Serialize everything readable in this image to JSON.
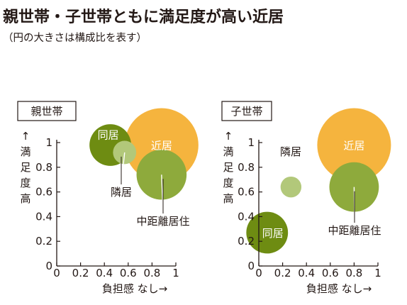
{
  "title": "親世帯・子世帯ともに満足度が高い近居",
  "subtitle": "（円の大きさは構成比を表す）",
  "colors": {
    "orange": "#f5b43e",
    "dark_green": "#6e8c12",
    "mid_green": "#8eaa3c",
    "light_green": "#b2c87a",
    "axis": "#231815"
  },
  "chart_data": [
    {
      "type": "scatter",
      "panel_label": "親世帯",
      "xlabel": "負担感 なし→",
      "ylabel_arrow": "↑",
      "ylabel": [
        "満",
        "足",
        "度",
        "高"
      ],
      "xlim": [
        0,
        1
      ],
      "ylim": [
        0,
        1
      ],
      "x_ticks": [
        "0",
        "0.2",
        "0.4",
        "0.6",
        "0.8",
        "1"
      ],
      "y_ticks": [
        "0",
        "0.2",
        "0.4",
        "0.6",
        "0.8",
        "1"
      ],
      "bubbles": [
        {
          "name": "近居",
          "x": 0.88,
          "y": 0.98,
          "size": 1.0,
          "color": "orange",
          "label": "近居"
        },
        {
          "name": "同居",
          "x": 0.45,
          "y": 0.98,
          "size": 0.32,
          "color": "dark_green",
          "label": "同居"
        },
        {
          "name": "隣居",
          "x": 0.57,
          "y": 0.92,
          "size": 0.1,
          "color": "light_green",
          "label": "隣居"
        },
        {
          "name": "中距離居住",
          "x": 0.88,
          "y": 0.74,
          "size": 0.46,
          "color": "mid_green",
          "label": "中距離居住"
        }
      ]
    },
    {
      "type": "scatter",
      "panel_label": "子世帯",
      "xlabel": "負担感 なし→",
      "ylabel_arrow": "↑",
      "ylabel": [
        "満",
        "足",
        "度",
        "高"
      ],
      "xlim": [
        0,
        1
      ],
      "ylim": [
        0,
        1
      ],
      "x_ticks": [
        "0",
        "0.2",
        "0.4",
        "0.6",
        "0.8",
        "1"
      ],
      "y_ticks": [
        "0",
        "0.2",
        "0.4",
        "0.6",
        "0.8",
        "1"
      ],
      "bubbles": [
        {
          "name": "近居",
          "x": 0.8,
          "y": 0.98,
          "size": 1.0,
          "color": "orange",
          "label": "近居"
        },
        {
          "name": "隣居",
          "x": 0.27,
          "y": 0.64,
          "size": 0.08,
          "color": "light_green",
          "label": "隣居"
        },
        {
          "name": "中距離居住",
          "x": 0.8,
          "y": 0.64,
          "size": 0.45,
          "color": "mid_green",
          "label": "中距離居住"
        },
        {
          "name": "同居",
          "x": 0.07,
          "y": 0.27,
          "size": 0.32,
          "color": "dark_green",
          "label": "同居"
        }
      ]
    }
  ]
}
